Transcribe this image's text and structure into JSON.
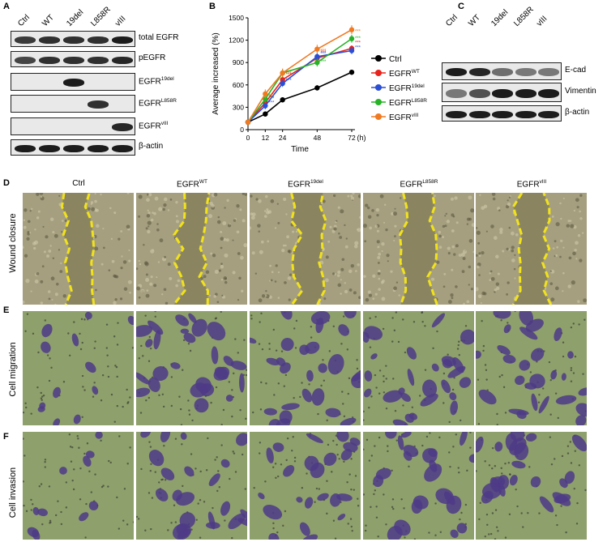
{
  "panels": {
    "A": {
      "letter": "A",
      "lanes": [
        "Ctrl",
        "WT",
        "19del",
        "L858R",
        "vIII"
      ],
      "rows": [
        {
          "base": "total EGFR",
          "sup": ""
        },
        {
          "base": "pEGFR",
          "sup": ""
        },
        {
          "base": "EGFR",
          "sup": "19del"
        },
        {
          "base": "EGFR",
          "sup": "L858R"
        },
        {
          "base": "EGFR",
          "sup": "vIII"
        },
        {
          "base": "β-actin",
          "sup": ""
        }
      ]
    },
    "B": {
      "letter": "B"
    },
    "C": {
      "letter": "C",
      "lanes": [
        "Ctrl",
        "WT",
        "19del",
        "L858R",
        "vIII"
      ],
      "rows": [
        "E-cad",
        "Vimentin",
        "β-actin"
      ]
    },
    "D": {
      "letter": "D",
      "columns": [
        {
          "base": "Ctrl",
          "sup": ""
        },
        {
          "base": "EGFR",
          "sup": "WT"
        },
        {
          "base": "EGFR",
          "sup": "19del"
        },
        {
          "base": "EGFR",
          "sup": "L858R"
        },
        {
          "base": "EGFR",
          "sup": "vIII"
        }
      ],
      "row_label": "Wound closure"
    },
    "E": {
      "letter": "E",
      "row_label": "Cell migration"
    },
    "F": {
      "letter": "F",
      "row_label": "Cell invasion"
    }
  },
  "colors": {
    "ctrl": "#000000",
    "wt": "#e8231c",
    "del19": "#2a4fd6",
    "l858r": "#27b327",
    "viii": "#f07a22",
    "wound_line": "#f2e21a",
    "wound_bg": "#8a8560",
    "cells_bg": "#a59f80",
    "stain_purple": "#4e3a87",
    "membrane_green": "#8ea06b"
  },
  "chart_data": {
    "type": "line",
    "xlabel": "Time",
    "xunit": "(h)",
    "ylabel": "Average increased (%)",
    "x": [
      0,
      12,
      24,
      48,
      72
    ],
    "xlim": [
      0,
      72
    ],
    "ylim": [
      0,
      1500
    ],
    "xticks": [
      "0",
      "12",
      "24",
      "48",
      "72"
    ],
    "yticks": [
      "0",
      "300",
      "600",
      "900",
      "1200",
      "1500"
    ],
    "significance_marker": "***",
    "legend_position": "right",
    "series": [
      {
        "name": "Ctrl",
        "sup": "",
        "color": "#000000",
        "values": [
          100,
          210,
          400,
          560,
          770
        ]
      },
      {
        "name": "EGFR",
        "sup": "WT",
        "color": "#e8231c",
        "values": [
          100,
          360,
          670,
          960,
          1090
        ]
      },
      {
        "name": "EGFR",
        "sup": "19del",
        "color": "#2a4fd6",
        "values": [
          100,
          320,
          620,
          980,
          1060
        ]
      },
      {
        "name": "EGFR",
        "sup": "L858R",
        "color": "#27b327",
        "values": [
          100,
          410,
          760,
          900,
          1220
        ]
      },
      {
        "name": "EGFR",
        "sup": "vIII",
        "color": "#f07a22",
        "values": [
          100,
          480,
          760,
          1080,
          1340
        ]
      }
    ]
  }
}
